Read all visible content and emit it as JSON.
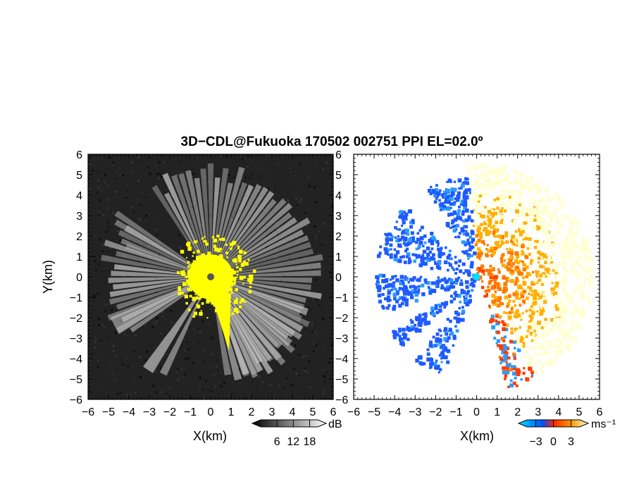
{
  "chart_data": [
    {
      "type": "heatmap",
      "title": "3D−CDL@Fukuoka 170502 002751 PPI EL=02.0º",
      "panel": "left",
      "quantity": "signal intensity",
      "xlabel": "X(km)",
      "ylabel": "Y(km)",
      "xlim": [
        -6,
        6
      ],
      "ylim": [
        -6,
        6
      ],
      "xticks": [
        "−6",
        "−5",
        "−4",
        "−3",
        "−2",
        "−1",
        "0",
        "1",
        "2",
        "3",
        "4",
        "5",
        "6"
      ],
      "yticks": [
        "6",
        "5",
        "4",
        "3",
        "2",
        "1",
        "0",
        "−1",
        "−2",
        "−3",
        "−4",
        "−5",
        "−6"
      ],
      "colorbar": {
        "unit": "dB",
        "ticks": [
          "6",
          "12",
          "18"
        ],
        "tick_values": [
          6,
          12,
          18
        ],
        "range": [
          0,
          21
        ],
        "colors": [
          "#000000",
          "#ffffff"
        ]
      },
      "background_color": "#222222",
      "overlay_color": "#ffff00",
      "origin_marker_color": "#555555"
    },
    {
      "type": "heatmap",
      "panel": "right",
      "quantity": "radial velocity",
      "xlabel": "X(km)",
      "xlim": [
        -6,
        6
      ],
      "ylim": [
        -6,
        6
      ],
      "xticks": [
        "−6",
        "−5",
        "−4",
        "−3",
        "−2",
        "−1",
        "0",
        "1",
        "2",
        "3",
        "4",
        "5",
        "6"
      ],
      "yticks": [
        "6",
        "5",
        "4",
        "3",
        "2",
        "1",
        "0",
        "−1",
        "−2",
        "−3",
        "−4",
        "−5",
        "−6"
      ],
      "colorbar": {
        "unit": "ms⁻¹",
        "ticks": [
          "−3",
          "0",
          "3"
        ],
        "tick_values": [
          -3,
          0,
          3
        ],
        "range": [
          -4.5,
          4.5
        ],
        "colors": [
          "#00dcff",
          "#0050ff",
          "#ff2800",
          "#ff9600",
          "#ffffc8"
        ]
      },
      "origin_marker_color": "#00e0ff"
    }
  ]
}
